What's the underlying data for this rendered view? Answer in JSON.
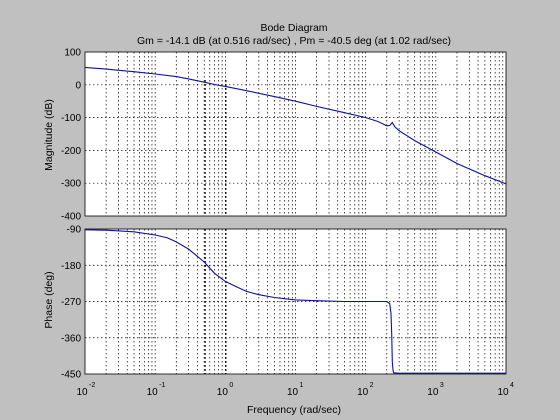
{
  "chart_data": {
    "type": "line",
    "title": "Bode Diagram",
    "subtitle": "Gm = -14.1 dB (at 0.516 rad/sec) ,  Pm = -40.5 deg (at 1.02 rad/sec)",
    "xlabel": "Frequency  (rad/sec)",
    "xscale": "log",
    "xlim": [
      0.01,
      10000
    ],
    "x_ticks": [
      {
        "base": "10",
        "exp": "-2",
        "value": 0.01
      },
      {
        "base": "10",
        "exp": "-1",
        "value": 0.1
      },
      {
        "base": "10",
        "exp": "0",
        "value": 1
      },
      {
        "base": "10",
        "exp": "1",
        "value": 10
      },
      {
        "base": "10",
        "exp": "2",
        "value": 100
      },
      {
        "base": "10",
        "exp": "3",
        "value": 1000
      },
      {
        "base": "10",
        "exp": "4",
        "value": 10000
      }
    ],
    "grid": true,
    "margin_frequencies": [
      0.516,
      1.02
    ],
    "panels": [
      {
        "name": "magnitude",
        "ylabel": "Magnitude (dB)",
        "ylim": [
          -400,
          100
        ],
        "yticks": [
          100,
          0,
          -100,
          -200,
          -300,
          -400
        ],
        "ytick_labels": [
          "100",
          "0",
          "-100",
          "-200",
          "-300",
          "-400"
        ],
        "series": [
          {
            "x": [
              0.01,
              0.02,
              0.05,
              0.1,
              0.2,
              0.3,
              0.5,
              0.7,
              1,
              2,
              5,
              10,
              20,
              50,
              100,
              150,
              180,
              200,
              220,
              240,
              260,
              300,
              500,
              1000,
              2000,
              5000,
              10000
            ],
            "y": [
              53,
              48,
              40,
              33,
              25,
              18,
              8,
              1,
              -5,
              -18,
              -36,
              -50,
              -66,
              -85,
              -100,
              -112,
              -120,
              -125,
              -124,
              -115,
              -128,
              -140,
              -170,
              -205,
              -240,
              -277,
              -302
            ]
          }
        ]
      },
      {
        "name": "phase",
        "ylabel": "Phase (deg)",
        "ylim": [
          -450,
          -90
        ],
        "yticks": [
          -90,
          -180,
          -270,
          -360,
          -450
        ],
        "ytick_labels": [
          "-90",
          "-180",
          "-270",
          "-360",
          "-450"
        ],
        "series": [
          {
            "x": [
              0.01,
              0.02,
              0.05,
              0.1,
              0.15,
              0.2,
              0.3,
              0.5,
              0.7,
              1,
              1.5,
              2,
              3,
              5,
              10,
              20,
              50,
              100,
              200,
              220,
              230,
              235,
              240,
              245,
              250,
              300,
              1000,
              10000
            ],
            "y": [
              -92,
              -93,
              -97,
              -105,
              -112,
              -122,
              -140,
              -172,
              -200,
              -220,
              -235,
              -245,
              -253,
              -260,
              -266,
              -268,
              -270,
              -270,
              -270,
              -275,
              -300,
              -350,
              -420,
              -440,
              -447,
              -448,
              -448,
              -448
            ]
          }
        ]
      }
    ]
  }
}
